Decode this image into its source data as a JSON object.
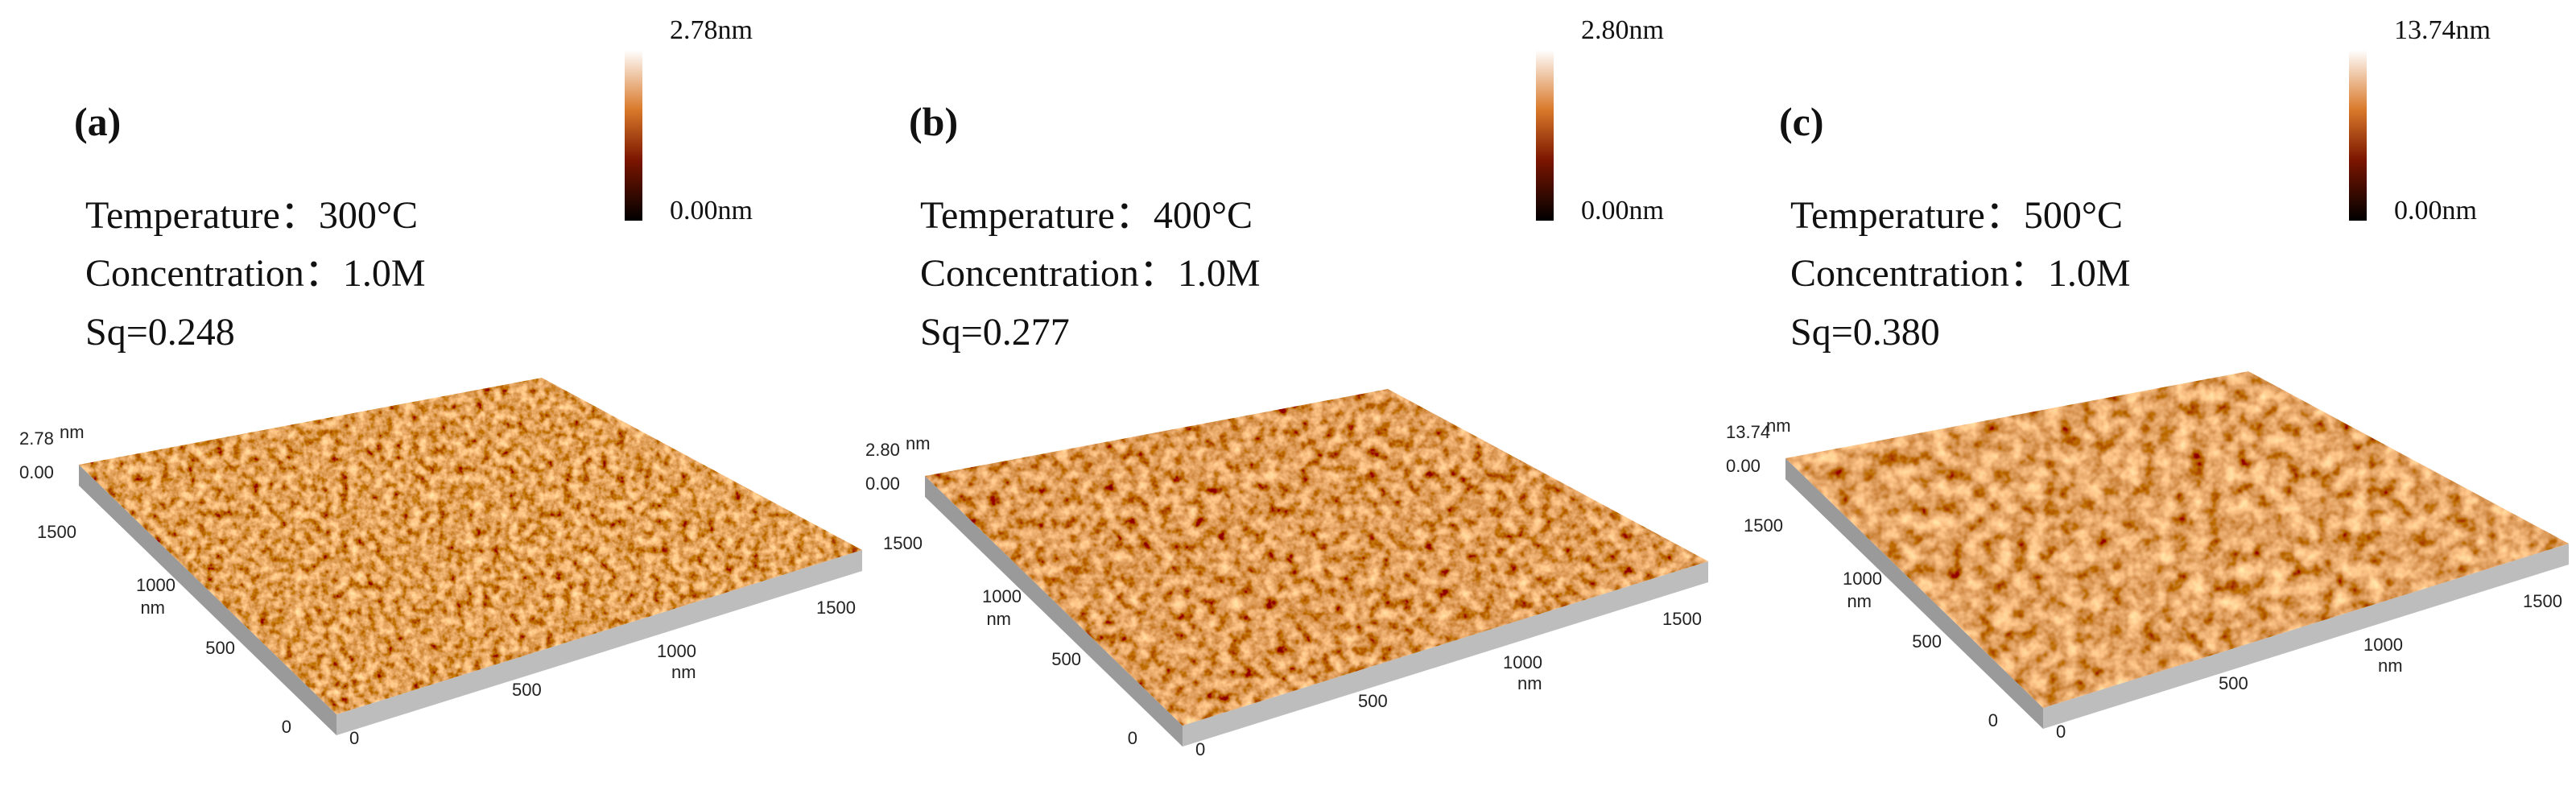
{
  "panels": [
    {
      "label": "(a)",
      "colorbar": {
        "max": "2.78nm",
        "min": "0.00nm"
      },
      "temperature": "Temperature：300°C",
      "concentration": "Concentration：1.0M",
      "sq": "Sq=0.248",
      "z_axis": {
        "max": "2.78",
        "unit": "nm",
        "min": "0.00"
      },
      "y_axis": {
        "ticks": [
          "1500",
          "1000",
          "500",
          "0"
        ],
        "unit": "nm"
      },
      "x_axis": {
        "ticks": [
          "0",
          "500",
          "1000",
          "1500"
        ],
        "unit": "nm"
      }
    },
    {
      "label": "(b)",
      "colorbar": {
        "max": "2.80nm",
        "min": "0.00nm"
      },
      "temperature": "Temperature：400°C",
      "concentration": "Concentration：1.0M",
      "sq": "Sq=0.277",
      "z_axis": {
        "max": "2.80",
        "unit": "nm",
        "min": "0.00"
      },
      "y_axis": {
        "ticks": [
          "1500",
          "1000",
          "500",
          "0"
        ],
        "unit": "nm"
      },
      "x_axis": {
        "ticks": [
          "0",
          "500",
          "1000",
          "1500"
        ],
        "unit": "nm"
      }
    },
    {
      "label": "(c)",
      "colorbar": {
        "max": "13.74nm",
        "min": "0.00nm"
      },
      "temperature": "Temperature：500°C",
      "concentration": "Concentration：1.0M",
      "sq": "Sq=0.380",
      "z_axis": {
        "max": "13.74",
        "unit": "nm",
        "min": "0.00"
      },
      "y_axis": {
        "ticks": [
          "1500",
          "1000",
          "500",
          "0"
        ],
        "unit": "nm"
      },
      "x_axis": {
        "ticks": [
          "0",
          "500",
          "1000",
          "1500"
        ],
        "unit": "nm"
      }
    }
  ]
}
